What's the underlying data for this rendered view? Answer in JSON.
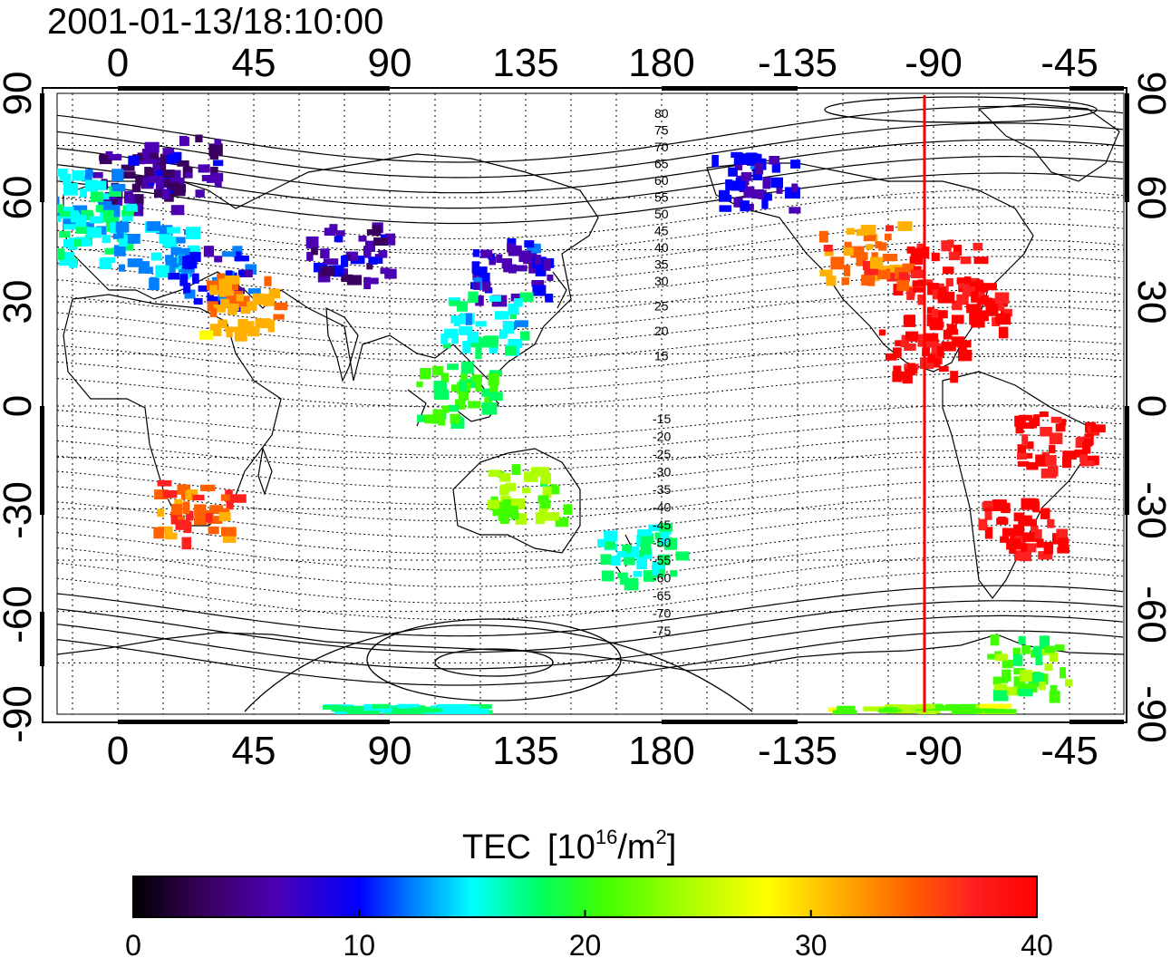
{
  "title": "2001-01-13/18:10:00",
  "map": {
    "type": "heatmap",
    "top_ticks": [
      "0",
      "45",
      "90",
      "135",
      "180",
      "-135",
      "-90",
      "-45"
    ],
    "bottom_ticks": [
      "0",
      "45",
      "90",
      "135",
      "180",
      "-135",
      "-90",
      "-45"
    ],
    "left_ticks": [
      "90",
      "60",
      "30",
      "0",
      "-30",
      "-60",
      "-90"
    ],
    "right_ticks": [
      "90",
      "60",
      "30",
      "0",
      "-30",
      "-60",
      "-90"
    ],
    "lon_range": [
      -24,
      332
    ],
    "lat_range": [
      -95,
      95
    ],
    "grid": true,
    "meridian_marker_lon": -93,
    "meridian_marker_color": "#ff0000",
    "contour_labels_north": [
      "80",
      "75",
      "70",
      "65",
      "60",
      "55",
      "50",
      "45",
      "40",
      "35",
      "30",
      "25",
      "20",
      "15"
    ],
    "contour_labels_south": [
      "-15",
      "-20",
      "-25",
      "-30",
      "-35",
      "-40",
      "-45",
      "-50",
      "-55",
      "-60",
      "-65",
      "-70",
      "-75"
    ]
  },
  "colorbar": {
    "title_main": "TEC",
    "title_unit_pre": "[10",
    "title_unit_sup1": "16",
    "title_unit_mid": "/m",
    "title_unit_sup2": "2",
    "title_unit_post": "]",
    "ticks": [
      "0",
      "10",
      "20",
      "30",
      "40"
    ],
    "min": 0,
    "max": 40,
    "colors": [
      "#000000",
      "#3a0060",
      "#4b00b4",
      "#0000ff",
      "#0080ff",
      "#00ffff",
      "#00ff60",
      "#40ff00",
      "#b0ff00",
      "#ffff00",
      "#ffb000",
      "#ff6000",
      "#ff2020",
      "#ff0000"
    ]
  },
  "chart_data": {
    "type": "heatmap",
    "variable": "TEC [10^16/m^2]",
    "regions": [
      {
        "lon": 5,
        "lat": 65,
        "tec": 5
      },
      {
        "lon": 20,
        "lat": 70,
        "tec": 6
      },
      {
        "lon": -15,
        "lat": 60,
        "tec": 15
      },
      {
        "lon": -10,
        "lat": 50,
        "tec": 17
      },
      {
        "lon": 10,
        "lat": 45,
        "tec": 14
      },
      {
        "lon": 30,
        "lat": 38,
        "tec": 10
      },
      {
        "lon": 40,
        "lat": 30,
        "tec": 32
      },
      {
        "lon": 75,
        "lat": 45,
        "tec": 6
      },
      {
        "lon": 130,
        "lat": 40,
        "tec": 8
      },
      {
        "lon": 120,
        "lat": 25,
        "tec": 16
      },
      {
        "lon": 110,
        "lat": 5,
        "tec": 20
      },
      {
        "lon": 25,
        "lat": -30,
        "tec": 34
      },
      {
        "lon": 135,
        "lat": -25,
        "tec": 22
      },
      {
        "lon": 172,
        "lat": -42,
        "tec": 17
      },
      {
        "lon": -115,
        "lat": 45,
        "tec": 33
      },
      {
        "lon": -90,
        "lat": 40,
        "tec": 38
      },
      {
        "lon": -80,
        "lat": 30,
        "tec": 40
      },
      {
        "lon": -95,
        "lat": 18,
        "tec": 40
      },
      {
        "lon": -50,
        "lat": -10,
        "tec": 40
      },
      {
        "lon": -62,
        "lat": -35,
        "tec": 40
      },
      {
        "lon": -150,
        "lat": 65,
        "tec": 8
      },
      {
        "lon": -60,
        "lat": -75,
        "tec": 22
      },
      {
        "lon": 90,
        "lat": -88,
        "tec": 17
      },
      {
        "lon": -100,
        "lat": -88,
        "tec": 24
      }
    ]
  }
}
